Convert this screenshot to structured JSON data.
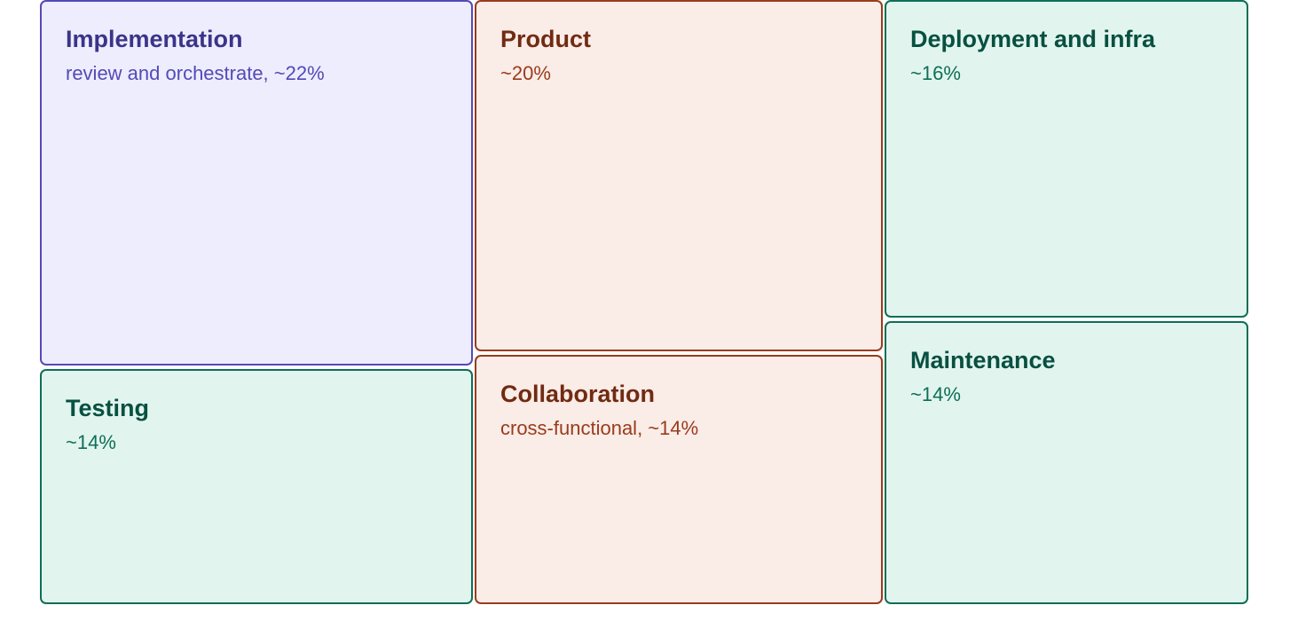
{
  "palette": {
    "purple": {
      "fill": "#eeedfe",
      "stroke": "#534ab7",
      "title": "#3c3489",
      "note": "#534ab7"
    },
    "coral": {
      "fill": "#faece7",
      "stroke": "#993c1d",
      "title": "#712b13",
      "note": "#993c1d"
    },
    "teal": {
      "fill": "#e1f5ee",
      "stroke": "#0f6e56",
      "title": "#085041",
      "note": "#0f6e56"
    }
  },
  "chart_data": {
    "type": "treemap",
    "title": "",
    "items": [
      {
        "id": "implementation",
        "label": "Implementation",
        "note": "review and orchestrate, ~22%",
        "value": 22,
        "color": "purple"
      },
      {
        "id": "testing",
        "label": "Testing",
        "note": "~14%",
        "value": 14,
        "color": "teal"
      },
      {
        "id": "product",
        "label": "Product",
        "note": "~20%",
        "value": 20,
        "color": "coral"
      },
      {
        "id": "collaboration",
        "label": "Collaboration",
        "note": "cross-functional, ~14%",
        "value": 14,
        "color": "coral"
      },
      {
        "id": "deployment",
        "label": "Deployment and infra",
        "note": "~16%",
        "value": 16,
        "color": "teal"
      },
      {
        "id": "maintenance",
        "label": "Maintenance",
        "note": "~14%",
        "value": 14,
        "color": "teal"
      }
    ]
  }
}
